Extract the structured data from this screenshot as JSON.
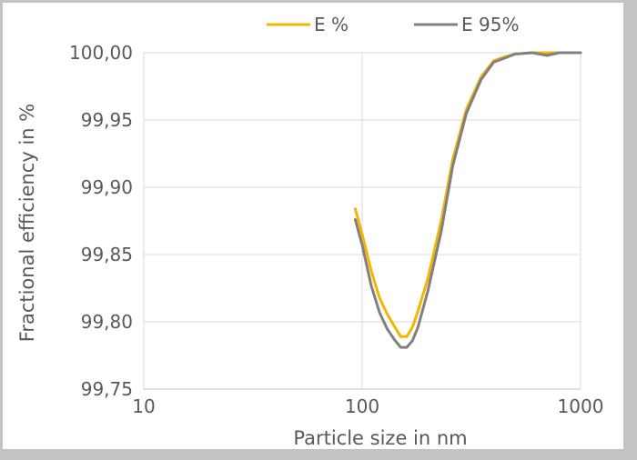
{
  "chart_data": {
    "type": "line",
    "title": "",
    "xlabel": "Particle size in nm",
    "ylabel": "Fractional efficiency in %",
    "xscale": "log",
    "xlim": [
      10,
      1000
    ],
    "ylim": [
      99.75,
      100.0
    ],
    "xticks": [
      10,
      100,
      1000
    ],
    "xtick_labels": [
      "10",
      "100",
      "1000"
    ],
    "yticks": [
      99.75,
      99.8,
      99.85,
      99.9,
      99.95,
      100.0
    ],
    "ytick_labels": [
      "99,75",
      "99,80",
      "99,85",
      "99,90",
      "99,95",
      "100,00"
    ],
    "grid": true,
    "legend_position": "top-center",
    "series": [
      {
        "name": "E %",
        "color": "#F5B400",
        "x": [
          93,
          100,
          110,
          120,
          130,
          140,
          150,
          160,
          170,
          180,
          200,
          230,
          260,
          300,
          350,
          400,
          450,
          500,
          600,
          700,
          800,
          900,
          1000
        ],
        "y": [
          99.884,
          99.865,
          99.838,
          99.818,
          99.806,
          99.797,
          99.789,
          99.789,
          99.796,
          99.808,
          99.832,
          99.875,
          99.921,
          99.958,
          99.982,
          99.994,
          99.997,
          99.999,
          100.0,
          100.0,
          100.0,
          100.0,
          100.0
        ]
      },
      {
        "name": "E 95%",
        "color": "#808080",
        "x": [
          93,
          100,
          110,
          120,
          130,
          140,
          150,
          160,
          170,
          180,
          200,
          230,
          260,
          300,
          350,
          400,
          450,
          500,
          600,
          650,
          700,
          800,
          900,
          1000
        ],
        "y": [
          99.876,
          99.857,
          99.827,
          99.807,
          99.795,
          99.787,
          99.781,
          99.781,
          99.786,
          99.796,
          99.823,
          99.867,
          99.916,
          99.955,
          99.98,
          99.993,
          99.996,
          99.999,
          100.0,
          99.999,
          99.998,
          100.0,
          100.0,
          100.0
        ]
      }
    ]
  }
}
